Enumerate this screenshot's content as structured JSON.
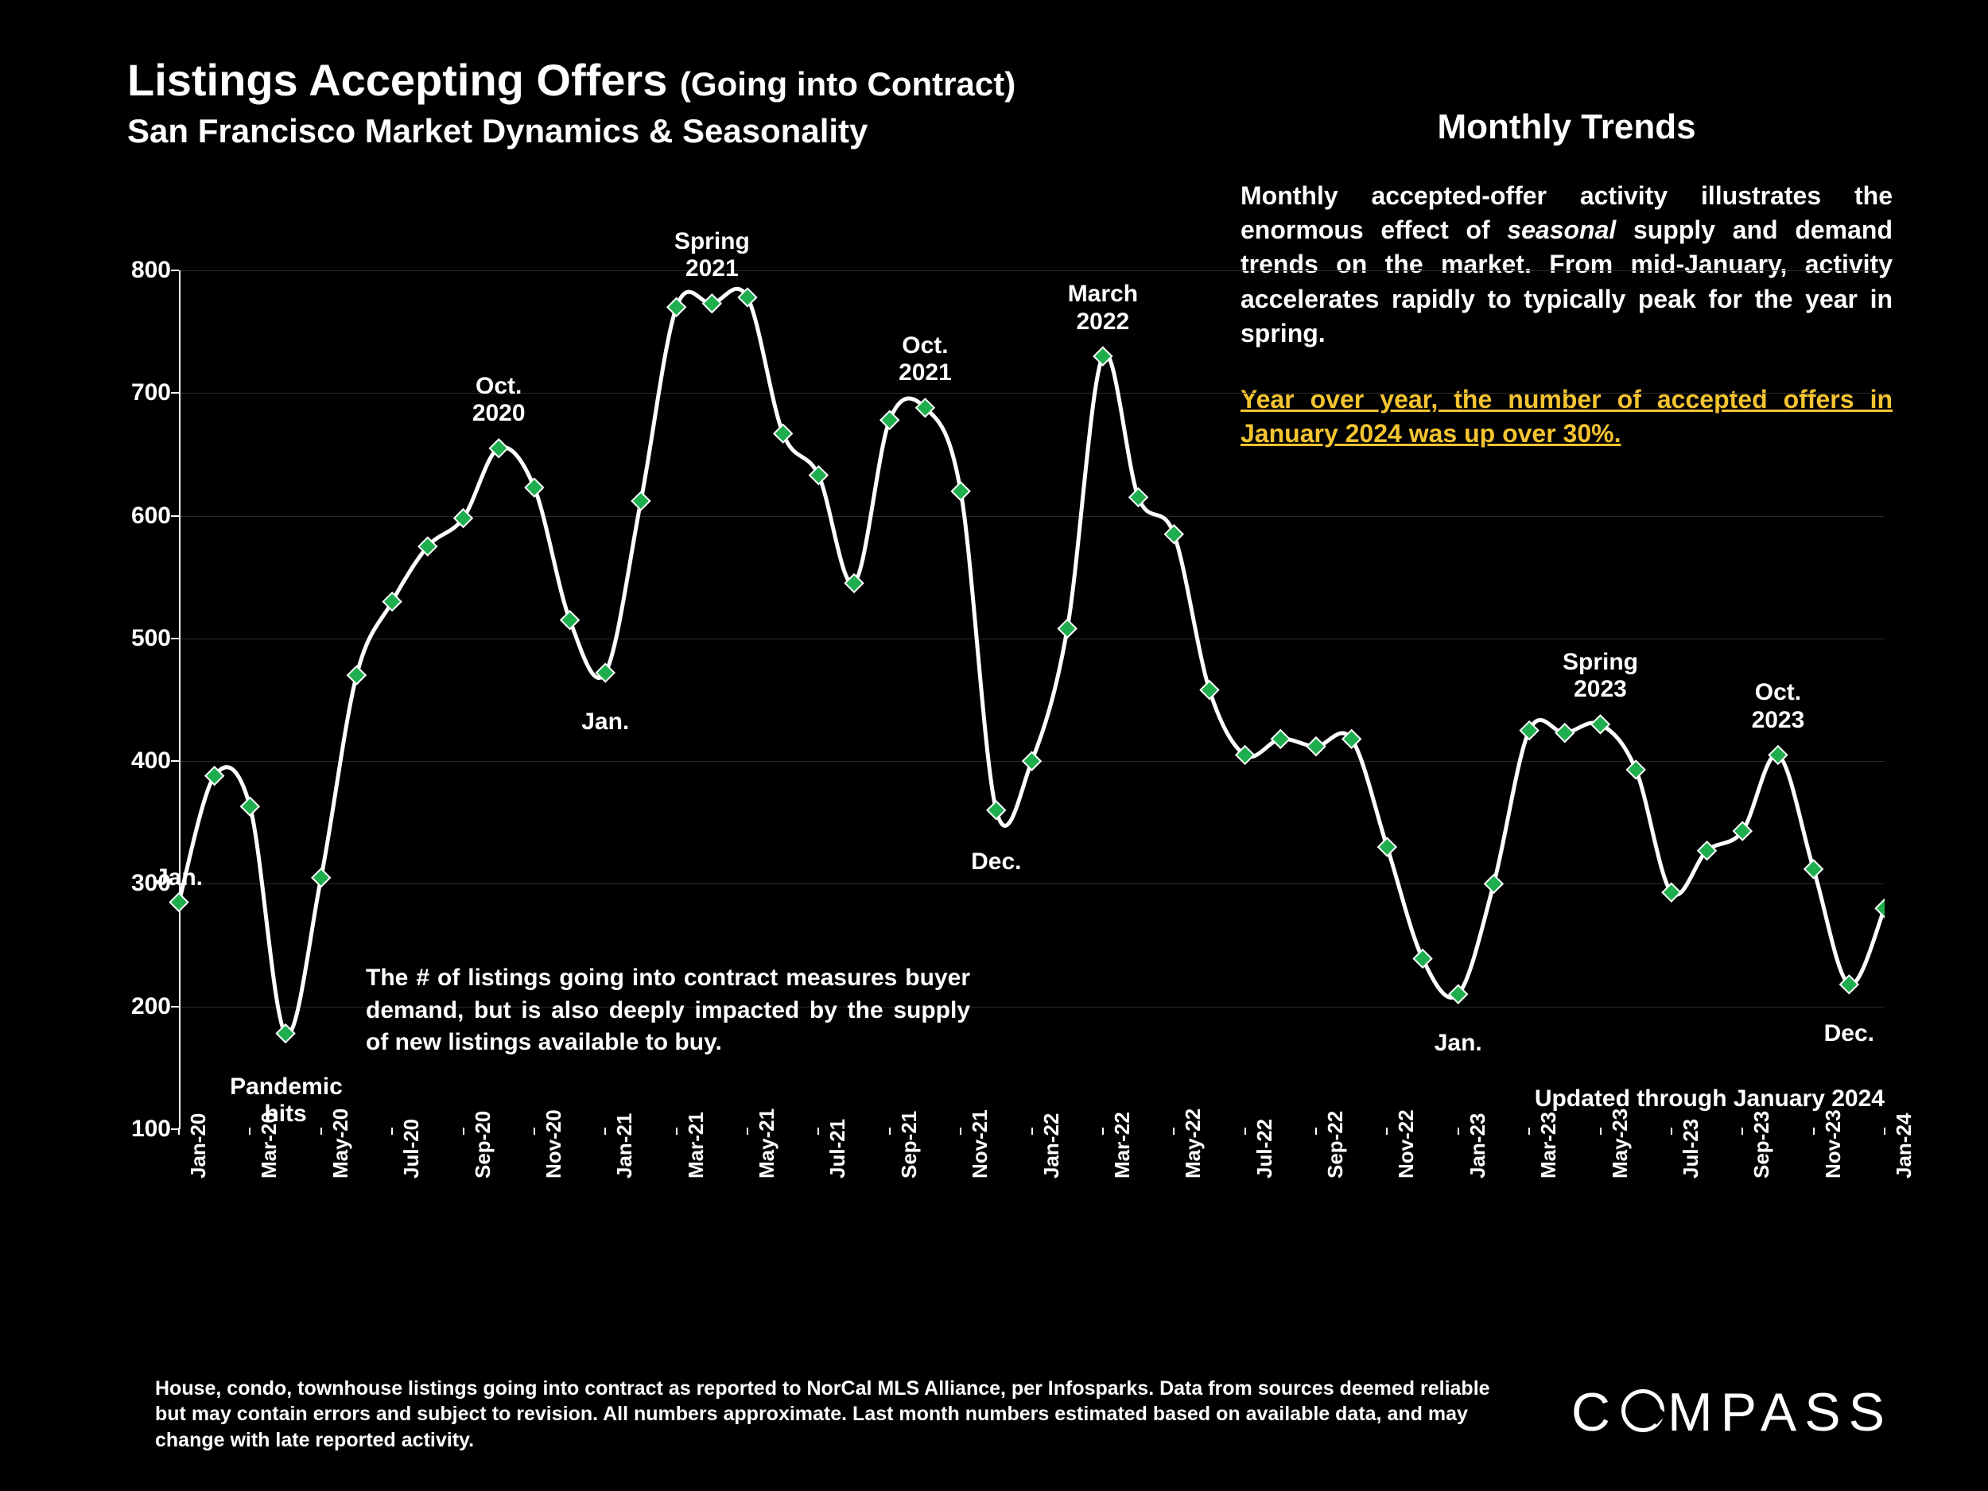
{
  "title": {
    "main": "Listings Accepting Offers",
    "sub_inline": "(Going into Contract)",
    "subtitle": "San Francisco Market Dynamics & Seasonality"
  },
  "right": {
    "heading": "Monthly Trends",
    "body": "Monthly accepted-offer activity illustrates the enormous effect of seasonal supply and demand trends on the market. From mid-January, activity accelerates rapidly to typically peak for the year in spring.",
    "body_italic_word": "seasonal",
    "highlight": "Year over year, the number of accepted offers in January 2024 was up over 30%."
  },
  "chart": {
    "type": "line",
    "background_color": "#000000",
    "line_color": "#ffffff",
    "line_width": 5,
    "marker_shape": "diamond",
    "marker_fill": "#1fae4e",
    "marker_stroke": "#ffffff",
    "marker_size": 16,
    "grid_color": "#2a2a2a",
    "axis_color": "#ffffff",
    "ylim": [
      100,
      800
    ],
    "ytick_step": 100,
    "y_ticks": [
      100,
      200,
      300,
      400,
      500,
      600,
      700,
      800
    ],
    "x_labels": [
      "Jan-20",
      "Mar-20",
      "May-20",
      "Jul-20",
      "Sep-20",
      "Nov-20",
      "Jan-21",
      "Mar-21",
      "May-21",
      "Jul-21",
      "Sep-21",
      "Nov-21",
      "Jan-22",
      "Mar-22",
      "May-22",
      "Jul-22",
      "Sep-22",
      "Nov-22",
      "Jan-23",
      "Mar-23",
      "May-23",
      "Jul-23",
      "Sep-23",
      "Nov-23",
      "Jan-24"
    ],
    "points": [
      {
        "x": "Jan-20",
        "y": 285
      },
      {
        "x": "Feb-20",
        "y": 388
      },
      {
        "x": "Mar-20",
        "y": 363
      },
      {
        "x": "Apr-20",
        "y": 178
      },
      {
        "x": "May-20",
        "y": 305
      },
      {
        "x": "Jun-20",
        "y": 470
      },
      {
        "x": "Jul-20",
        "y": 530
      },
      {
        "x": "Aug-20",
        "y": 575
      },
      {
        "x": "Sep-20",
        "y": 598
      },
      {
        "x": "Oct-20",
        "y": 655
      },
      {
        "x": "Nov-20",
        "y": 623
      },
      {
        "x": "Dec-20",
        "y": 515
      },
      {
        "x": "Jan-21",
        "y": 472
      },
      {
        "x": "Feb-21",
        "y": 612
      },
      {
        "x": "Mar-21",
        "y": 770
      },
      {
        "x": "Apr-21",
        "y": 773
      },
      {
        "x": "May-21",
        "y": 778
      },
      {
        "x": "Jun-21",
        "y": 667
      },
      {
        "x": "Jul-21",
        "y": 633
      },
      {
        "x": "Aug-21",
        "y": 545
      },
      {
        "x": "Sep-21",
        "y": 678
      },
      {
        "x": "Oct-21",
        "y": 688
      },
      {
        "x": "Nov-21",
        "y": 620
      },
      {
        "x": "Dec-21",
        "y": 360
      },
      {
        "x": "Jan-22",
        "y": 400
      },
      {
        "x": "Feb-22",
        "y": 508
      },
      {
        "x": "Mar-22",
        "y": 730
      },
      {
        "x": "Apr-22",
        "y": 615
      },
      {
        "x": "May-22",
        "y": 585
      },
      {
        "x": "Jun-22",
        "y": 458
      },
      {
        "x": "Jul-22",
        "y": 405
      },
      {
        "x": "Aug-22",
        "y": 418
      },
      {
        "x": "Sep-22",
        "y": 412
      },
      {
        "x": "Oct-22",
        "y": 418
      },
      {
        "x": "Nov-22",
        "y": 330
      },
      {
        "x": "Dec-22",
        "y": 239
      },
      {
        "x": "Jan-23",
        "y": 210
      },
      {
        "x": "Feb-23",
        "y": 300
      },
      {
        "x": "Mar-23",
        "y": 425
      },
      {
        "x": "Apr-23",
        "y": 423
      },
      {
        "x": "May-23",
        "y": 430
      },
      {
        "x": "Jun-23",
        "y": 393
      },
      {
        "x": "Jul-23",
        "y": 293
      },
      {
        "x": "Aug-23",
        "y": 327
      },
      {
        "x": "Sep-23",
        "y": 343
      },
      {
        "x": "Oct-23",
        "y": 405
      },
      {
        "x": "Nov-23",
        "y": 312
      },
      {
        "x": "Dec-23",
        "y": 218
      },
      {
        "x": "Jan-24",
        "y": 280
      }
    ],
    "annotations": [
      {
        "text": "Jan.",
        "x": 0,
        "y_offset": -48,
        "align": "center"
      },
      {
        "text": "Pandemic\nhits",
        "x": 3,
        "y_offset": 50,
        "align": "center"
      },
      {
        "text": "Oct.\n2020",
        "x": 9,
        "y_offset": -95,
        "align": "center"
      },
      {
        "text": "Jan.",
        "x": 12,
        "y_offset": 45,
        "align": "center"
      },
      {
        "text": "Spring\n2021",
        "x": 15,
        "y_offset": -95,
        "align": "center"
      },
      {
        "text": "Oct.\n2021",
        "x": 21,
        "y_offset": -95,
        "align": "center"
      },
      {
        "text": "Dec.",
        "x": 23,
        "y_offset": 48,
        "align": "center"
      },
      {
        "text": "March\n2022",
        "x": 26,
        "y_offset": -95,
        "align": "center"
      },
      {
        "text": "Jan.",
        "x": 36,
        "y_offset": 45,
        "align": "center"
      },
      {
        "text": "Spring\n2023",
        "x": 40,
        "y_offset": -95,
        "align": "center"
      },
      {
        "text": "Oct.\n2023",
        "x": 45,
        "y_offset": -95,
        "align": "center"
      },
      {
        "text": "Dec.",
        "x": 47,
        "y_offset": 45,
        "align": "center"
      }
    ],
    "middle_note": "The # of listings going into contract measures buyer demand, but is also deeply impacted by the supply of new listings available to buy.",
    "updated_text": "Updated through January 2024"
  },
  "footnote": "House, condo, townhouse listings going into contract as reported to NorCal MLS Alliance, per Infosparks. Data from sources deemed reliable but may contain errors and subject to revision. All numbers approximate. Last month numbers estimated based on available data, and may change with late reported activity.",
  "logo_text": "COMPASS"
}
